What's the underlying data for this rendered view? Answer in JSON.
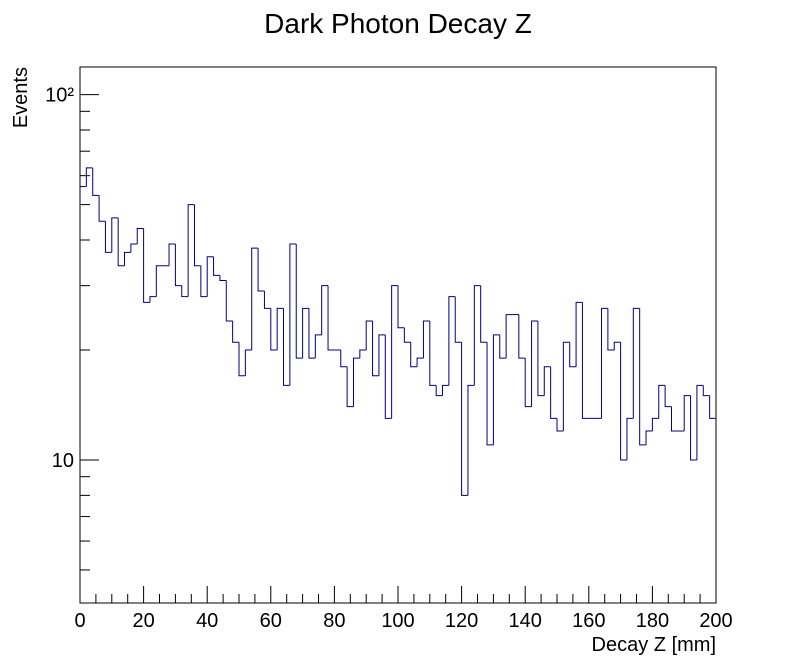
{
  "chart_data": {
    "type": "histogram",
    "title": "Dark Photon Decay Z",
    "x_label": "Decay Z [mm]",
    "y_label": "Events",
    "color": "#000080",
    "log_y": true,
    "grid": false,
    "bins": [
      0,
      2,
      4,
      6,
      8,
      10,
      12,
      14,
      16,
      18,
      20,
      22,
      24,
      26,
      28,
      30,
      32,
      34,
      36,
      38,
      40,
      42,
      44,
      46,
      48,
      50,
      52,
      54,
      56,
      58,
      60,
      62,
      64,
      66,
      68,
      70,
      72,
      74,
      76,
      78,
      80,
      82,
      84,
      86,
      88,
      90,
      92,
      94,
      96,
      98,
      100,
      102,
      104,
      106,
      108,
      110,
      112,
      114,
      116,
      118,
      120,
      122,
      124,
      126,
      128,
      130,
      132,
      134,
      136,
      138,
      140,
      142,
      144,
      146,
      148,
      150,
      152,
      154,
      156,
      158,
      160,
      162,
      164,
      166,
      168,
      170,
      172,
      174,
      176,
      178,
      180,
      182,
      184,
      186,
      188,
      190,
      192,
      194,
      196,
      198,
      200
    ],
    "values": [
      56,
      63,
      53,
      45,
      37,
      46,
      34,
      37,
      39,
      43,
      27,
      28,
      34,
      34,
      39,
      30,
      28,
      50,
      34,
      28,
      36,
      32,
      31,
      24,
      21,
      17,
      20,
      38,
      29,
      26,
      20,
      26,
      16,
      39,
      19,
      26,
      19,
      22,
      30,
      20,
      20,
      18,
      14,
      19,
      20,
      24,
      17,
      22,
      13,
      30,
      23,
      21,
      18,
      19,
      24,
      16,
      15,
      16,
      28,
      21,
      8,
      16,
      30,
      21,
      11,
      22,
      19,
      25,
      25,
      19,
      14,
      24,
      15,
      18,
      13,
      12,
      21,
      18,
      27,
      13,
      13,
      13,
      26,
      20,
      21,
      10,
      13,
      26,
      11,
      12,
      13,
      16,
      14,
      12,
      12,
      15,
      10,
      16,
      15,
      13
    ],
    "xlim": [
      0,
      200
    ],
    "xticks": [
      0,
      20,
      40,
      60,
      80,
      100,
      120,
      140,
      160,
      180,
      200
    ],
    "xminorticks": [
      5,
      10,
      15,
      25,
      30,
      35,
      45,
      50,
      55,
      65,
      70,
      75,
      85,
      90,
      95,
      105,
      110,
      115,
      125,
      130,
      135,
      145,
      150,
      155,
      165,
      170,
      175,
      185,
      190,
      195
    ],
    "ylim": [
      4.06,
      119
    ],
    "yticks": [
      10,
      {
        "value": 100,
        "label": "10²"
      }
    ],
    "yminorticks": [
      5,
      6,
      7,
      8,
      9,
      20,
      30,
      40,
      50,
      60,
      70,
      80,
      90
    ]
  }
}
